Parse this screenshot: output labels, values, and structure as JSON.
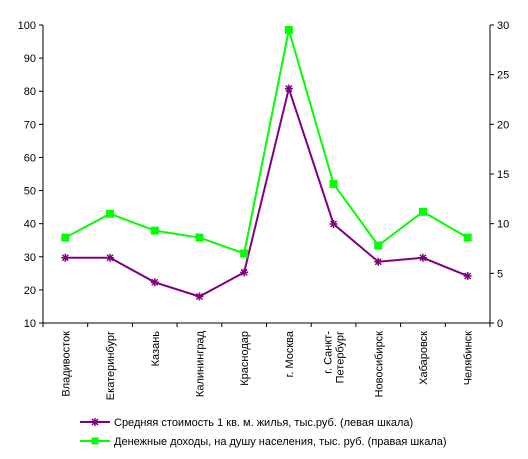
{
  "chart_data": {
    "type": "line",
    "categories": [
      "Владивосток",
      "Екатеринбург",
      "Казань",
      "Калининград",
      "Краснодар",
      "г. Москва",
      "г. Санкт-Петербург",
      "Новосибирск",
      "Хабаровск",
      "Челябинск"
    ],
    "category_lines": [
      [
        "Владивосток"
      ],
      [
        "Екатеринбург"
      ],
      [
        "Казань"
      ],
      [
        "Калининград"
      ],
      [
        "Краснодар"
      ],
      [
        "г. Москва"
      ],
      [
        "г. Санкт-",
        "Петербург"
      ],
      [
        "Новосибирск"
      ],
      [
        "Хабаровск"
      ],
      [
        "Челябинск"
      ]
    ],
    "series": [
      {
        "name": "Средняя стоимость 1 кв. м. жилья, тыс.руб. (левая шкала)",
        "axis": "left",
        "color": "#800080",
        "marker": "star",
        "values": [
          29.7,
          29.7,
          22.3,
          18.0,
          25.3,
          80.8,
          39.9,
          28.5,
          29.7,
          24.2
        ]
      },
      {
        "name": "Денежные доходы, на душу населения, тыс. руб. (правая шкала)",
        "axis": "right",
        "color": "#00ff00",
        "marker": "square",
        "values": [
          8.6,
          11.0,
          9.3,
          8.6,
          7.0,
          29.5,
          14.0,
          7.8,
          11.2,
          8.6
        ]
      }
    ],
    "left_axis": {
      "min": 10,
      "max": 100,
      "ticks": [
        "10",
        "20",
        "30",
        "40",
        "50",
        "60",
        "70",
        "80",
        "90",
        "100"
      ]
    },
    "right_axis": {
      "min": 0,
      "max": 30,
      "ticks": [
        "0",
        "5",
        "10",
        "15",
        "20",
        "25",
        "30"
      ]
    },
    "title": "",
    "xlabel": "",
    "ylabel": "",
    "legend_position": "bottom",
    "grid": false
  }
}
